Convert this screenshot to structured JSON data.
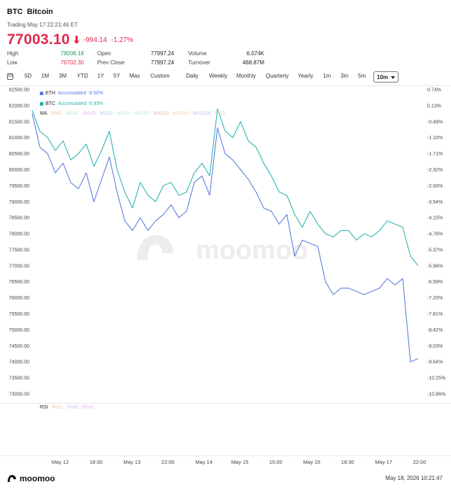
{
  "header": {
    "symbol": "BTC",
    "name": "Bitcoin",
    "status": "Trading May 17 22:21:46 ET",
    "price": "77003.10",
    "change": "-994.14",
    "change_pct": "-1.27%"
  },
  "quote": {
    "high_label": "High",
    "high_value": "78008.18",
    "low_label": "Low",
    "low_value": "76702.30",
    "open_label": "Open",
    "open_value": "77997.24",
    "prev_close_label": "Prev Close",
    "prev_close_value": "77997.24",
    "volume_label": "Volume",
    "volume_value": "6.074K",
    "turnover_label": "Turnover",
    "turnover_value": "468.87M"
  },
  "toolbar": {
    "icon_label": "1D",
    "ranges": [
      "5D",
      "1M",
      "3M",
      "YTD",
      "1Y",
      "5Y",
      "Max",
      "Custom"
    ],
    "intervals": [
      "Daily",
      "Weekly",
      "Monthly",
      "Quarterly",
      "Yearly",
      "1m",
      "3m",
      "5m"
    ],
    "selected_interval": "10m"
  },
  "legend": {
    "eth_label": "ETH",
    "eth_acc": "Accumulated -9.50%",
    "btc_label": "BTC",
    "btc_acc": "Accumulated -5.93%"
  },
  "ma_indicators": [
    "MA",
    "MA5",
    "MA10",
    "MA20",
    "MA30",
    "MA60",
    "MA120",
    "MA200",
    "MA250",
    "MA1000",
    "MA1"
  ],
  "rsi_indicators": [
    "RSI",
    "RSI1",
    "RSI2",
    "RSI3"
  ],
  "colors": {
    "eth": "#5b7ce0",
    "btc": "#2ab3b0",
    "down": "#e0294a",
    "up": "#1aa260"
  },
  "watermark": "moomoo",
  "footer": {
    "logo": "moomoo",
    "timestamp": "May 18, 2026 10:21:47"
  },
  "chart_data": {
    "type": "line",
    "left_axis_ticks": [
      "82500.00",
      "82000.00",
      "81500.00",
      "81000.00",
      "80500.00",
      "80000.00",
      "79500.00",
      "79000.00",
      "78500.00",
      "78000.00",
      "77500.00",
      "77000.00",
      "76500.00",
      "76000.00",
      "75500.00",
      "75000.00",
      "74500.00",
      "74000.00",
      "73500.00",
      "73000.00"
    ],
    "right_axis_ticks": [
      "0.74%",
      "0.13%",
      "-0.49%",
      "-1.10%",
      "-1.71%",
      "-2.32%",
      "-2.93%",
      "-3.54%",
      "-4.15%",
      "-4.76%",
      "-5.37%",
      "-5.98%",
      "-6.59%",
      "-7.20%",
      "-7.81%",
      "-8.42%",
      "-9.03%",
      "-9.64%",
      "-10.25%",
      "-10.86%"
    ],
    "x_ticks": [
      "May 12",
      "18:30",
      "May 13",
      "22:00",
      "May 14",
      "May 15",
      "15:00",
      "May 16",
      "18:30",
      "May 17",
      "22:00"
    ],
    "ylim": [
      73000,
      82500
    ],
    "x": [
      0,
      2,
      4,
      6,
      8,
      10,
      12,
      14,
      16,
      18,
      20,
      22,
      24,
      26,
      28,
      30,
      32,
      34,
      36,
      38,
      40,
      42,
      44,
      46,
      48,
      50,
      52,
      54,
      56,
      58,
      60,
      62,
      64,
      66,
      68,
      70,
      72,
      74,
      76,
      78,
      80,
      82,
      84,
      86,
      88,
      90,
      92,
      94,
      96,
      98,
      100
    ],
    "series": [
      {
        "name": "BTC",
        "values": [
          81850,
          81200,
          81000,
          80600,
          80900,
          80300,
          80500,
          80800,
          80100,
          80600,
          81200,
          80000,
          79300,
          78800,
          79600,
          79200,
          79000,
          79500,
          79600,
          79200,
          79300,
          79900,
          80200,
          79800,
          81900,
          81200,
          81000,
          81500,
          80900,
          80700,
          80200,
          79800,
          79300,
          79200,
          78600,
          78200,
          78700,
          78300,
          78000,
          77900,
          78100,
          78100,
          77800,
          78000,
          77900,
          78100,
          78400,
          78300,
          78200,
          77300,
          77000
        ]
      },
      {
        "name": "ETH",
        "values": [
          81750,
          80700,
          80500,
          79900,
          80200,
          79600,
          79400,
          79900,
          79000,
          79700,
          80400,
          79300,
          78400,
          78100,
          78500,
          78100,
          78400,
          78600,
          78900,
          78500,
          78700,
          79600,
          79800,
          79200,
          81300,
          80500,
          80300,
          80000,
          79700,
          79300,
          78800,
          78700,
          78300,
          78600,
          77300,
          77800,
          77700,
          77600,
          76500,
          76100,
          76300,
          76300,
          76200,
          76100,
          76200,
          76300,
          76600,
          76400,
          76600,
          74000,
          74100
        ]
      }
    ],
    "grid": true,
    "legend": "top-left"
  }
}
